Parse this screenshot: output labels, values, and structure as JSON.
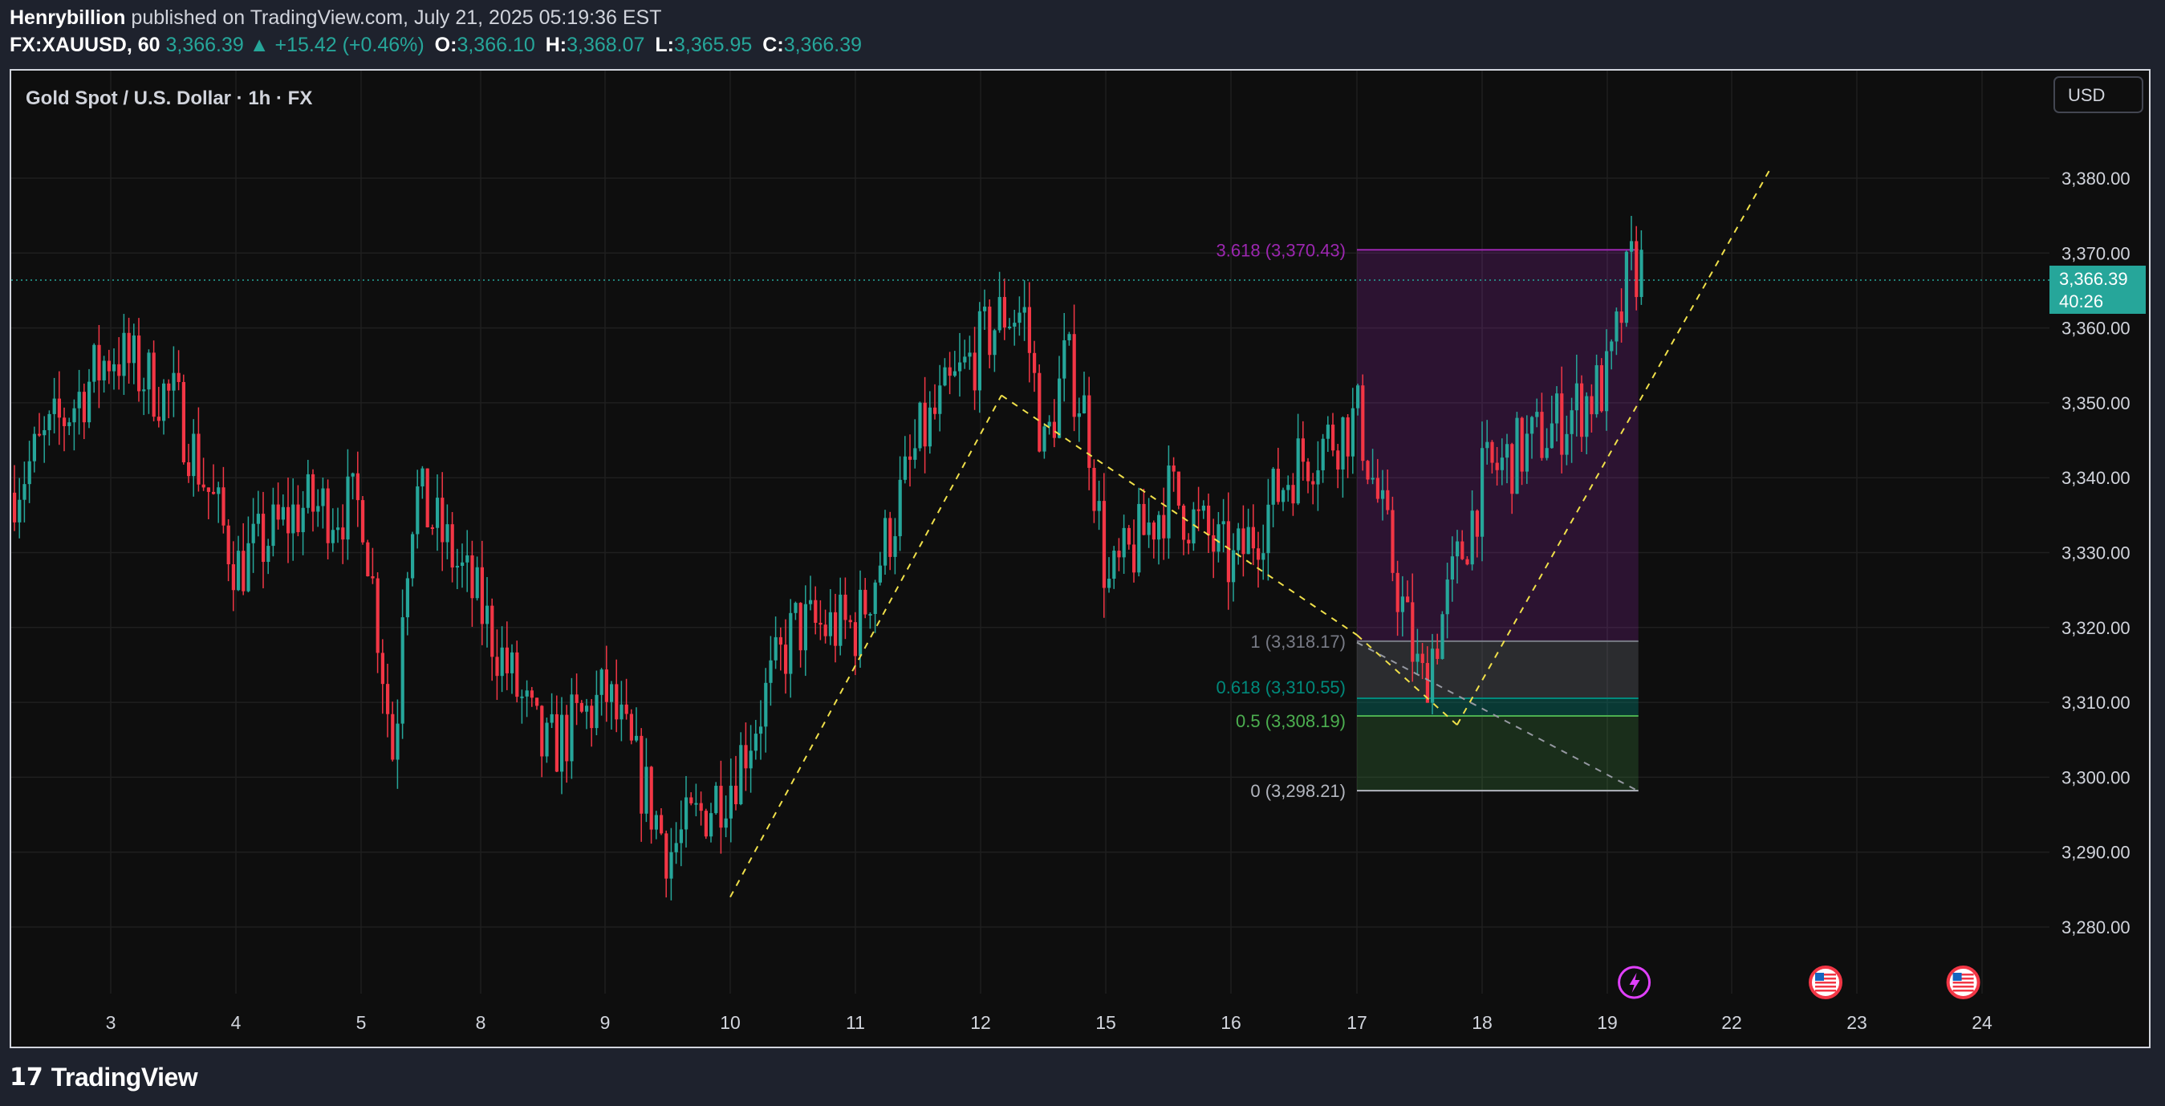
{
  "header": {
    "author": "Henrybillion",
    "published_text": " published on TradingView.com, July 21, 2025 05:19:36 EST",
    "symbol": "FX:XAUUSD, 60",
    "last": "3,366.39",
    "change": "▲ +15.42 (+0.46%)",
    "o_label": "O:",
    "o_val": "3,366.10",
    "h_label": "H:",
    "h_val": "3,368.07",
    "l_label": "L:",
    "l_val": "3,365.95",
    "c_label": "C:",
    "c_val": "3,366.39"
  },
  "chart_title": "Gold Spot / U.S. Dollar · 1h · FX",
  "currency_button": "USD",
  "price_badge": {
    "price": "3,366.39",
    "countdown": "40:26"
  },
  "footer": {
    "logo_text": "TradingView"
  },
  "colors": {
    "up": "#26a69a",
    "down": "#f23645",
    "fib_top": "#9c27b0",
    "fib_one": "#787b86",
    "fib_618": "#00897b",
    "fib_05": "#4caf50",
    "trend": "#f0e04a"
  },
  "chart_data": {
    "type": "candlestick",
    "title": "Gold Spot / U.S. Dollar · 1h · FX",
    "x_tick_labels": [
      "3",
      "4",
      "5",
      "8",
      "9",
      "10",
      "11",
      "12",
      "15",
      "16",
      "17",
      "18",
      "19",
      "22",
      "23",
      "24"
    ],
    "y_tick_labels": [
      "3,380.00",
      "3,370.00",
      "3,360.00",
      "3,350.00",
      "3,340.00",
      "3,330.00",
      "3,320.00",
      "3,310.00",
      "3,300.00",
      "3,290.00",
      "3,280.00"
    ],
    "y_ticks": [
      3380,
      3370,
      3360,
      3350,
      3340,
      3330,
      3320,
      3310,
      3300,
      3290,
      3280
    ],
    "current_price": 3366.39,
    "close_series": [
      {
        "day": "2",
        "close": 3338
      },
      {
        "day": "3",
        "close": 3357
      },
      {
        "day": "3.5",
        "close": 3350
      },
      {
        "day": "4",
        "close": 3328
      },
      {
        "day": "4.5",
        "close": 3336
      },
      {
        "day": "5",
        "close": 3336
      },
      {
        "day": "5.5",
        "close": 3315
      },
      {
        "day": "5.8",
        "close": 3301
      },
      {
        "day": "6",
        "close": 3325
      },
      {
        "day": "6.3",
        "close": 3338
      },
      {
        "day": "7",
        "close": 3332
      },
      {
        "day": "8",
        "close": 3322
      },
      {
        "day": "8.5",
        "close": 3303
      },
      {
        "day": "9",
        "close": 3311
      },
      {
        "day": "9.5",
        "close": 3290
      },
      {
        "day": "10",
        "close": 3300
      },
      {
        "day": "10.5",
        "close": 3320
      },
      {
        "day": "11",
        "close": 3320
      },
      {
        "day": "11.5",
        "close": 3345
      },
      {
        "day": "12",
        "close": 3358
      },
      {
        "day": "12.5",
        "close": 3362
      },
      {
        "day": "13",
        "close": 3362
      },
      {
        "day": "13.5",
        "close": 3343
      },
      {
        "day": "14",
        "close": 3356
      },
      {
        "day": "14.5",
        "close": 3348
      },
      {
        "day": "15",
        "close": 3325
      },
      {
        "day": "15.5",
        "close": 3338
      },
      {
        "day": "16",
        "close": 3328
      },
      {
        "day": "16.5",
        "close": 3342
      },
      {
        "day": "17",
        "close": 3348
      },
      {
        "day": "17.5",
        "close": 3312
      },
      {
        "day": "18",
        "close": 3340
      },
      {
        "day": "18.5",
        "close": 3346
      },
      {
        "day": "19",
        "close": 3353
      },
      {
        "day": "19.5",
        "close": 3368
      }
    ],
    "fib_levels": [
      {
        "ratio": "3.618",
        "price": 3370.43,
        "label": "3.618 (3,370.43)"
      },
      {
        "ratio": "1",
        "price": 3318.17,
        "label": "1 (3,318.17)"
      },
      {
        "ratio": "0.618",
        "price": 3310.55,
        "label": "0.618 (3,310.55)"
      },
      {
        "ratio": "0.5",
        "price": 3308.19,
        "label": "0.5 (3,308.19)"
      },
      {
        "ratio": "0",
        "price": 3298.21,
        "label": "0 (3,298.21)"
      }
    ],
    "trend_lines": [
      {
        "from": {
          "day": "10",
          "price": 3284
        },
        "to": {
          "day": "12.5",
          "price": 3351
        }
      },
      {
        "from": {
          "day": "12.5",
          "price": 3351
        },
        "to": {
          "day": "17",
          "price": 3319
        }
      },
      {
        "from": {
          "day": "17",
          "price": 3319
        },
        "to": {
          "day": "17.8",
          "price": 3307
        }
      },
      {
        "from": {
          "day": "17.8",
          "price": 3307
        },
        "to": {
          "day": "22.3",
          "price": 3381
        }
      },
      {
        "from": {
          "day": "17",
          "price": 3318
        },
        "to": {
          "day": "19.8",
          "price": 3298
        }
      }
    ],
    "events": [
      "flash-icon",
      "us-flag-icon",
      "us-flag-icon"
    ]
  }
}
